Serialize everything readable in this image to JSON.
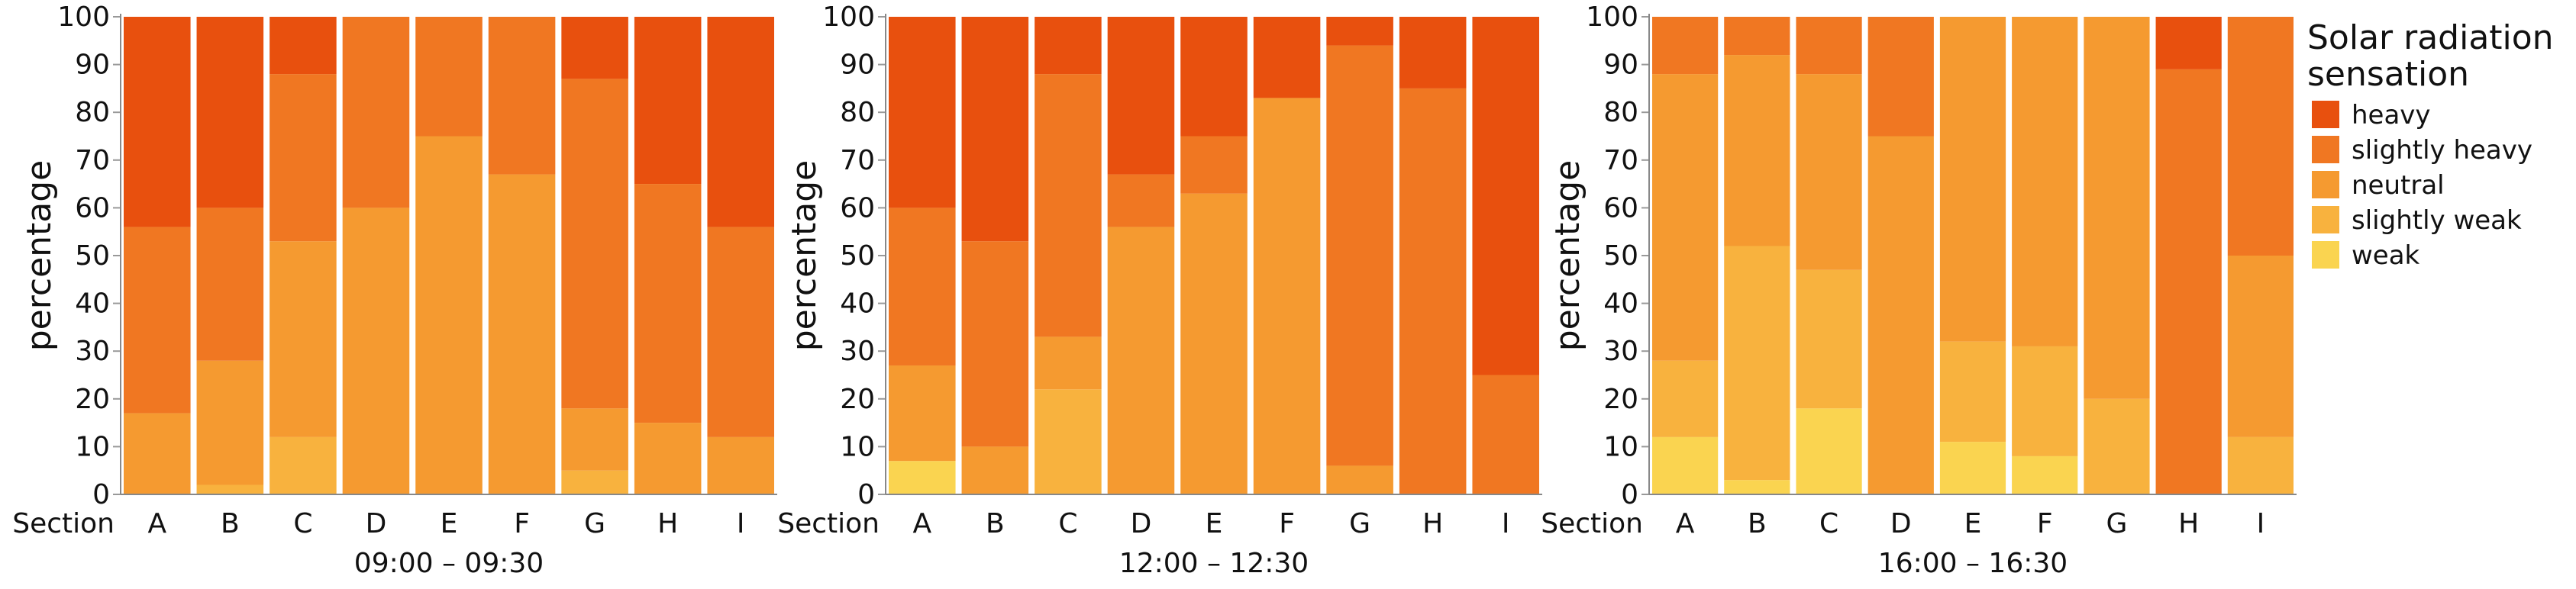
{
  "colors": {
    "heavy": "#E8500E",
    "slightly_heavy": "#F07722",
    "neutral": "#F59A30",
    "slightly_weak": "#F8B23E",
    "weak": "#FAD450"
  },
  "legend": {
    "title_line1": "Solar radiation",
    "title_line2": "sensation",
    "items": [
      {
        "key": "heavy",
        "label": "heavy"
      },
      {
        "key": "slightly_heavy",
        "label": "slightly heavy"
      },
      {
        "key": "neutral",
        "label": "neutral"
      },
      {
        "key": "slightly_weak",
        "label": "slightly weak"
      },
      {
        "key": "weak",
        "label": "weak"
      }
    ]
  },
  "chart_data": [
    {
      "type": "bar",
      "stacked": true,
      "title": "09:00 – 09:30",
      "ylabel": "percentage",
      "xlabel": "Section",
      "ylim": [
        0,
        100
      ],
      "yticks": [
        0,
        10,
        20,
        30,
        40,
        50,
        60,
        70,
        80,
        90,
        100
      ],
      "categories": [
        "A",
        "B",
        "C",
        "D",
        "E",
        "F",
        "G",
        "H",
        "I"
      ],
      "series": [
        {
          "name": "weak",
          "values": [
            0,
            0,
            0,
            0,
            0,
            0,
            0,
            0,
            0
          ]
        },
        {
          "name": "slightly weak",
          "values": [
            0,
            2,
            12,
            0,
            0,
            0,
            5,
            0,
            0
          ]
        },
        {
          "name": "neutral",
          "values": [
            17,
            26,
            41,
            60,
            75,
            67,
            13,
            15,
            12
          ]
        },
        {
          "name": "slightly heavy",
          "values": [
            39,
            32,
            35,
            40,
            25,
            33,
            69,
            50,
            44
          ]
        },
        {
          "name": "heavy",
          "values": [
            44,
            40,
            12,
            0,
            0,
            0,
            13,
            35,
            44
          ]
        }
      ]
    },
    {
      "type": "bar",
      "stacked": true,
      "title": "12:00 – 12:30",
      "ylabel": "percentage",
      "xlabel": "Section",
      "ylim": [
        0,
        100
      ],
      "yticks": [
        0,
        10,
        20,
        30,
        40,
        50,
        60,
        70,
        80,
        90,
        100
      ],
      "categories": [
        "A",
        "B",
        "C",
        "D",
        "E",
        "F",
        "G",
        "H",
        "I"
      ],
      "series": [
        {
          "name": "weak",
          "values": [
            7,
            0,
            0,
            0,
            0,
            0,
            0,
            0,
            0
          ]
        },
        {
          "name": "slightly weak",
          "values": [
            0,
            0,
            22,
            0,
            0,
            0,
            0,
            0,
            0
          ]
        },
        {
          "name": "neutral",
          "values": [
            20,
            10,
            11,
            56,
            63,
            83,
            6,
            0,
            0
          ]
        },
        {
          "name": "slightly heavy",
          "values": [
            33,
            43,
            55,
            11,
            12,
            0,
            88,
            85,
            25
          ]
        },
        {
          "name": "heavy",
          "values": [
            40,
            47,
            12,
            33,
            25,
            17,
            6,
            15,
            75
          ]
        }
      ]
    },
    {
      "type": "bar",
      "stacked": true,
      "title": "16:00 – 16:30",
      "ylabel": "percentage",
      "xlabel": "Section",
      "ylim": [
        0,
        100
      ],
      "yticks": [
        0,
        10,
        20,
        30,
        40,
        50,
        60,
        70,
        80,
        90,
        100
      ],
      "categories": [
        "A",
        "B",
        "C",
        "D",
        "E",
        "F",
        "G",
        "H",
        "I"
      ],
      "series": [
        {
          "name": "weak",
          "values": [
            12,
            3,
            18,
            0,
            11,
            8,
            0,
            0,
            0
          ]
        },
        {
          "name": "slightly weak",
          "values": [
            16,
            49,
            29,
            0,
            21,
            23,
            20,
            0,
            12
          ]
        },
        {
          "name": "neutral",
          "values": [
            60,
            40,
            41,
            75,
            68,
            69,
            80,
            0,
            38
          ]
        },
        {
          "name": "slightly heavy",
          "values": [
            12,
            8,
            12,
            25,
            0,
            0,
            0,
            89,
            50
          ]
        },
        {
          "name": "heavy",
          "values": [
            0,
            0,
            0,
            0,
            0,
            0,
            0,
            11,
            0
          ]
        }
      ]
    }
  ]
}
